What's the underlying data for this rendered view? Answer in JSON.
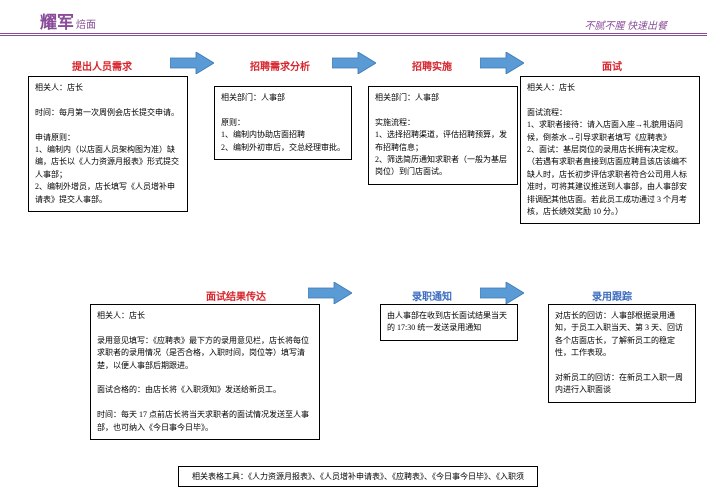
{
  "header": {
    "logo_main": "耀军",
    "logo_sub": "焙面",
    "slogan": "不腻不腥 快速出餐"
  },
  "colors": {
    "accent": "#8a4c99",
    "title_red": "#d7262d",
    "title_blue": "#3b6cc0",
    "arrow_fill": "#5b9bd5",
    "arrow_stroke": "#3b78b5",
    "box_border": "#000000",
    "bg": "#ffffff"
  },
  "steps": {
    "s1": "提出人员需求",
    "s2": "招聘需求分析",
    "s3": "招聘实施",
    "s4": "面试",
    "s5": "面试结果传达",
    "s6": "录职通知",
    "s7": "录用跟踪"
  },
  "boxes": {
    "b1": "相关人：店长\n\n时间：每月第一次周例会店长提交申请。\n\n申请原则：\n1、编制内（以店面人员架构图为准）缺编，店长以《人力资源月报表》形式提交人事部；\n2、编制外增员，店长填写《人员增补申请表》提交人事部。",
    "b2": "相关部门：人事部\n\n原则：\n1、编制内协助店面招聘\n2、编制外初审后，交总经理审批。",
    "b3": "相关部门：人事部\n\n实施流程：\n1、选择招聘渠道，评估招聘预算，发布招聘信息；\n2、筛选简历通知求职者（一般为基层岗位）到门店面试。",
    "b4": "相关人：店长\n\n面试流程：\n1、求职者接待：请入店面入座→礼貌用语问候，倒茶水→引导求职者填写《应聘表》\n2、面试：基层岗位的录用店长拥有决定权。（若遇有求职者直接到店面应聘且该店该编不缺人时，店长初步评估求职者符合公司用人标准时，可将其建议推送到人事部，由人事部安排调配其他店面。若此员工成功通过 3 个月考核，店长绩效奖励 10 分。）",
    "b5": "相关人：店长\n\n录用意见填写：《应聘表》最下方的录用意见栏，店长将每位求职者的录用情况（是否合格，入职时间，岗位等）填写清楚，以便人事部后期跟进。\n\n面试合格的：由店长将《入职须知》发送给新员工。\n\n时间：每天 17 点前店长将当天求职者的面试情况发送至人事部，也可纳入《今日事今日毕》。",
    "b6": "由人事部在收到店长面试结果当天的 17:30 统一发送录用通知",
    "b7": "对店长的回访：人事部根据录用通知，于员工入职当天、第 3 天、回访各个店面店长，了解新员工的稳定性，工作表现。\n\n对新员工的回访：在新员工入职一周内进行入职面谈"
  },
  "footer": "相关表格工具：《人力资源月报表》、《人员增补申请表》、《应聘表》、《今日事今日毕》、《入职须"
}
